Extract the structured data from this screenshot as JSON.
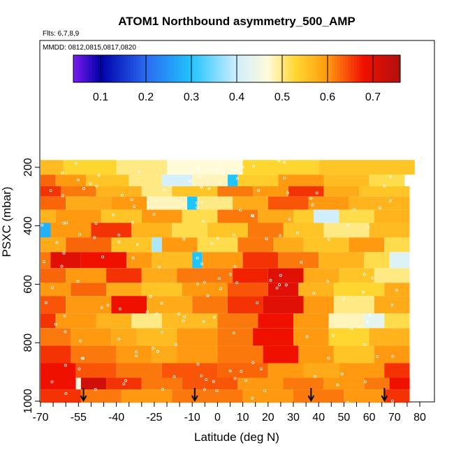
{
  "chart_data": {
    "type": "heatmap",
    "title": "ATOM1 Northbound asymmetry_500_AMP",
    "flights_label": "Flts: 6,7,8,9",
    "dates_label": "MMDD: 0812,0815,0817,0820",
    "xlabel": "Latitude (deg N)",
    "ylabel": "PSXC (mbar)",
    "x_tick_labels": [
      "-70",
      "-55",
      "-40",
      "-25",
      "-10",
      "0",
      "10",
      "20",
      "30",
      "40",
      "50",
      "60",
      "70",
      "80"
    ],
    "x_tick_values": [
      -70,
      -55,
      -40,
      -25,
      -10,
      0,
      10,
      20,
      30,
      40,
      50,
      60,
      70,
      80
    ],
    "y_tick_labels": [
      "200",
      "400",
      "600",
      "800",
      "1000"
    ],
    "y_tick_values": [
      200,
      400,
      600,
      800,
      1000
    ],
    "colorbar_tick_labels": [
      "0.1",
      "0.2",
      "0.3",
      "0.4",
      "0.5",
      "0.6",
      "0.7"
    ],
    "colorbar_tick_values": [
      0.1,
      0.2,
      0.3,
      0.4,
      0.5,
      0.6,
      0.7
    ],
    "colorbar_range": [
      0.04,
      0.76
    ],
    "ylim": [
      1000,
      0
    ],
    "arrow_latitudes": [
      -53,
      -9,
      37,
      66
    ],
    "colors": {
      "purple": "#7a1cf0",
      "navy": "#0000a8",
      "blue": "#2a6af0",
      "cyan": "#20c4ff",
      "lightblue": "#cfeeff",
      "ivory": "#fffbd8",
      "yellow": "#ffd630",
      "orange": "#ff9a10",
      "red": "#f01000",
      "darkred": "#b01010"
    },
    "rows": [
      {
        "p": [
          175,
          225
        ],
        "segs": [
          [
            -71,
            -61,
            0.56
          ],
          [
            -61,
            -40,
            0.53
          ],
          [
            -40,
            -20,
            0.5
          ],
          [
            -20,
            10,
            0.47
          ],
          [
            10,
            40,
            0.53
          ],
          [
            40,
            78,
            0.55
          ]
        ]
      },
      {
        "p": [
          225,
          265
        ],
        "segs": [
          [
            -74,
            -64,
            0.63
          ],
          [
            -64,
            -52,
            0.6
          ],
          [
            -52,
            -35,
            0.55
          ],
          [
            -35,
            -22,
            0.5
          ],
          [
            -22,
            -10,
            0.41
          ],
          [
            -10,
            4,
            0.48
          ],
          [
            4,
            8,
            0.3
          ],
          [
            8,
            24,
            0.54
          ],
          [
            24,
            42,
            0.6
          ],
          [
            42,
            60,
            0.56
          ],
          [
            60,
            74,
            0.52
          ]
        ]
      },
      {
        "p": [
          265,
          300
        ],
        "segs": [
          [
            -74,
            -62,
            0.66
          ],
          [
            -62,
            -48,
            0.62
          ],
          [
            -48,
            -30,
            0.57
          ],
          [
            -30,
            -18,
            0.5
          ],
          [
            -18,
            0,
            0.55
          ],
          [
            0,
            14,
            0.62
          ],
          [
            14,
            28,
            0.6
          ],
          [
            28,
            42,
            0.66
          ],
          [
            42,
            56,
            0.58
          ],
          [
            56,
            76,
            0.55
          ]
        ]
      },
      {
        "p": [
          300,
          345
        ],
        "segs": [
          [
            -74,
            -60,
            0.63
          ],
          [
            -60,
            -42,
            0.58
          ],
          [
            -42,
            -28,
            0.6
          ],
          [
            -28,
            -12,
            0.48
          ],
          [
            -12,
            -8,
            0.3
          ],
          [
            -8,
            6,
            0.5
          ],
          [
            6,
            20,
            0.58
          ],
          [
            20,
            36,
            0.64
          ],
          [
            36,
            52,
            0.6
          ],
          [
            52,
            76,
            0.57
          ]
        ]
      },
      {
        "p": [
          345,
          390
        ],
        "segs": [
          [
            -74,
            -64,
            0.57
          ],
          [
            -64,
            -46,
            0.6
          ],
          [
            -46,
            -30,
            0.55
          ],
          [
            -30,
            -14,
            0.6
          ],
          [
            -14,
            0,
            0.52
          ],
          [
            0,
            16,
            0.62
          ],
          [
            16,
            30,
            0.58
          ],
          [
            30,
            38,
            0.54
          ],
          [
            38,
            48,
            0.4
          ],
          [
            48,
            62,
            0.52
          ],
          [
            62,
            76,
            0.57
          ]
        ]
      },
      {
        "p": [
          390,
          440
        ],
        "segs": [
          [
            -74,
            -70,
            0.5
          ],
          [
            -70,
            -66,
            0.28
          ],
          [
            -66,
            -50,
            0.6
          ],
          [
            -50,
            -34,
            0.66
          ],
          [
            -34,
            -18,
            0.57
          ],
          [
            -18,
            -4,
            0.52
          ],
          [
            -4,
            12,
            0.55
          ],
          [
            12,
            26,
            0.62
          ],
          [
            26,
            42,
            0.55
          ],
          [
            42,
            60,
            0.5
          ],
          [
            60,
            76,
            0.56
          ]
        ]
      },
      {
        "p": [
          440,
          490
        ],
        "segs": [
          [
            -74,
            -60,
            0.58
          ],
          [
            -60,
            -42,
            0.63
          ],
          [
            -42,
            -26,
            0.55
          ],
          [
            -26,
            -22,
            0.38
          ],
          [
            -22,
            -8,
            0.6
          ],
          [
            -8,
            8,
            0.52
          ],
          [
            8,
            22,
            0.62
          ],
          [
            22,
            34,
            0.58
          ],
          [
            34,
            52,
            0.55
          ],
          [
            52,
            66,
            0.6
          ],
          [
            66,
            76,
            0.52
          ]
        ]
      },
      {
        "p": [
          490,
          545
        ],
        "segs": [
          [
            -74,
            -66,
            0.62
          ],
          [
            -66,
            -54,
            0.7
          ],
          [
            -54,
            -36,
            0.68
          ],
          [
            -36,
            -26,
            0.6
          ],
          [
            -26,
            -10,
            0.56
          ],
          [
            -10,
            -6,
            0.3
          ],
          [
            -6,
            10,
            0.6
          ],
          [
            10,
            24,
            0.66
          ],
          [
            24,
            40,
            0.62
          ],
          [
            40,
            58,
            0.57
          ],
          [
            58,
            68,
            0.52
          ],
          [
            68,
            76,
            0.42
          ]
        ]
      },
      {
        "p": [
          545,
          595
        ],
        "segs": [
          [
            -74,
            -60,
            0.63
          ],
          [
            -60,
            -44,
            0.6
          ],
          [
            -44,
            -30,
            0.66
          ],
          [
            -30,
            -16,
            0.58
          ],
          [
            -16,
            6,
            0.62
          ],
          [
            6,
            20,
            0.67
          ],
          [
            20,
            34,
            0.7
          ],
          [
            34,
            48,
            0.58
          ],
          [
            48,
            62,
            0.55
          ],
          [
            62,
            76,
            0.5
          ]
        ]
      },
      {
        "p": [
          595,
          640
        ],
        "segs": [
          [
            -74,
            -58,
            0.6
          ],
          [
            -58,
            -44,
            0.63
          ],
          [
            -44,
            -30,
            0.58
          ],
          [
            -30,
            -14,
            0.55
          ],
          [
            -14,
            4,
            0.6
          ],
          [
            4,
            20,
            0.64
          ],
          [
            20,
            32,
            0.7
          ],
          [
            32,
            46,
            0.57
          ],
          [
            46,
            66,
            0.53
          ],
          [
            66,
            76,
            0.58
          ]
        ]
      },
      {
        "p": [
          640,
          700
        ],
        "segs": [
          [
            -74,
            -60,
            0.64
          ],
          [
            -60,
            -42,
            0.6
          ],
          [
            -42,
            -28,
            0.68
          ],
          [
            -28,
            -10,
            0.58
          ],
          [
            -10,
            4,
            0.62
          ],
          [
            4,
            18,
            0.66
          ],
          [
            18,
            34,
            0.7
          ],
          [
            34,
            46,
            0.6
          ],
          [
            46,
            62,
            0.5
          ],
          [
            62,
            76,
            0.58
          ]
        ]
      },
      {
        "p": [
          700,
          750
        ],
        "segs": [
          [
            -74,
            -64,
            0.66
          ],
          [
            -64,
            -48,
            0.6
          ],
          [
            -48,
            -34,
            0.57
          ],
          [
            -34,
            -22,
            0.5
          ],
          [
            -22,
            0,
            0.56
          ],
          [
            0,
            16,
            0.62
          ],
          [
            16,
            30,
            0.68
          ],
          [
            30,
            44,
            0.6
          ],
          [
            44,
            58,
            0.48
          ],
          [
            58,
            66,
            0.43
          ],
          [
            66,
            76,
            0.52
          ]
        ]
      },
      {
        "p": [
          750,
          810
        ],
        "segs": [
          [
            -74,
            -58,
            0.62
          ],
          [
            -58,
            -42,
            0.6
          ],
          [
            -42,
            -32,
            0.58
          ],
          [
            -32,
            -16,
            0.56
          ],
          [
            -16,
            0,
            0.6
          ],
          [
            0,
            14,
            0.62
          ],
          [
            14,
            30,
            0.68
          ],
          [
            30,
            44,
            0.6
          ],
          [
            44,
            60,
            0.53
          ],
          [
            60,
            76,
            0.57
          ]
        ]
      },
      {
        "p": [
          810,
          870
        ],
        "segs": [
          [
            -74,
            -58,
            0.66
          ],
          [
            -58,
            -40,
            0.62
          ],
          [
            -40,
            -26,
            0.6
          ],
          [
            -26,
            -16,
            0.58
          ],
          [
            -16,
            0,
            0.6
          ],
          [
            0,
            18,
            0.62
          ],
          [
            18,
            32,
            0.68
          ],
          [
            32,
            46,
            0.6
          ],
          [
            46,
            62,
            0.55
          ],
          [
            62,
            76,
            0.6
          ]
        ]
      },
      {
        "p": [
          870,
          920
        ],
        "segs": [
          [
            -74,
            -56,
            0.68
          ],
          [
            -56,
            -40,
            0.64
          ],
          [
            -40,
            -22,
            0.62
          ],
          [
            -22,
            0,
            0.64
          ],
          [
            0,
            20,
            0.63
          ],
          [
            20,
            34,
            0.6
          ],
          [
            34,
            48,
            0.58
          ],
          [
            48,
            66,
            0.6
          ],
          [
            66,
            76,
            0.66
          ]
        ]
      },
      {
        "p": [
          920,
          960
        ],
        "segs": [
          [
            -74,
            -56,
            0.68
          ],
          [
            -56,
            -54,
            0.45
          ],
          [
            -54,
            -44,
            0.72
          ],
          [
            -44,
            -30,
            0.66
          ],
          [
            -30,
            -14,
            0.62
          ],
          [
            -14,
            8,
            0.64
          ],
          [
            8,
            26,
            0.6
          ],
          [
            26,
            42,
            0.62
          ],
          [
            42,
            58,
            0.6
          ],
          [
            58,
            68,
            0.62
          ],
          [
            68,
            76,
            0.68
          ]
        ]
      },
      {
        "p": [
          960,
          1005
        ],
        "segs": [
          [
            -74,
            -54,
            0.66
          ],
          [
            -54,
            -38,
            0.62
          ],
          [
            -38,
            -18,
            0.6
          ],
          [
            -18,
            10,
            0.62
          ],
          [
            10,
            30,
            0.6
          ],
          [
            30,
            50,
            0.62
          ],
          [
            50,
            66,
            0.6
          ],
          [
            66,
            76,
            0.66
          ]
        ]
      }
    ]
  }
}
